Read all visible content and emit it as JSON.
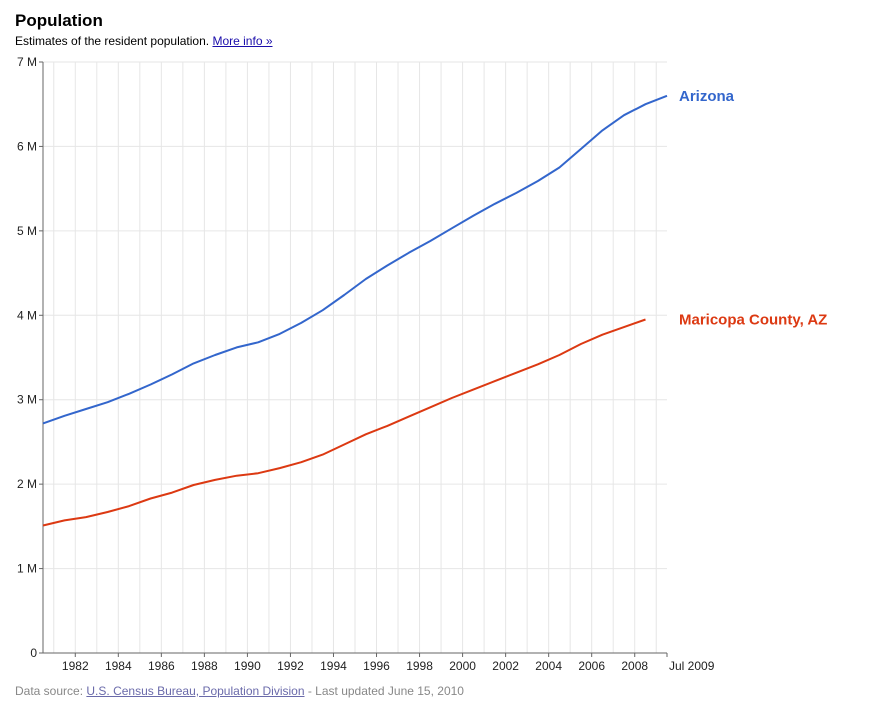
{
  "header": {
    "title": "Population",
    "subtitle": "Estimates of the resident population.",
    "more_info_label": "More info »"
  },
  "footer": {
    "source_prefix": "Data source:",
    "source_link": "U.S. Census Bureau, Population Division",
    "updated": " - Last updated June 15, 2010"
  },
  "colors": {
    "arizona": "#3366cc",
    "maricopa": "#dc3912",
    "grid": "#e6e6e6",
    "axis": "#666666"
  },
  "chart_data": {
    "type": "line",
    "title": "Population",
    "xlabel": "",
    "ylabel": "",
    "xlim": [
      1980.5,
      2009.5
    ],
    "ylim": [
      0,
      7000000
    ],
    "grid": true,
    "legend": "right-end labels",
    "y_ticks": [
      {
        "value": 0,
        "label": "0"
      },
      {
        "value": 1000000,
        "label": "1 M"
      },
      {
        "value": 2000000,
        "label": "2 M"
      },
      {
        "value": 3000000,
        "label": "3 M"
      },
      {
        "value": 4000000,
        "label": "4 M"
      },
      {
        "value": 5000000,
        "label": "5 M"
      },
      {
        "value": 6000000,
        "label": "6 M"
      },
      {
        "value": 7000000,
        "label": "7 M"
      }
    ],
    "x_ticks": [
      {
        "value": 1982,
        "label": "1982"
      },
      {
        "value": 1984,
        "label": "1984"
      },
      {
        "value": 1986,
        "label": "1986"
      },
      {
        "value": 1988,
        "label": "1988"
      },
      {
        "value": 1990,
        "label": "1990"
      },
      {
        "value": 1992,
        "label": "1992"
      },
      {
        "value": 1994,
        "label": "1994"
      },
      {
        "value": 1996,
        "label": "1996"
      },
      {
        "value": 1998,
        "label": "1998"
      },
      {
        "value": 2000,
        "label": "2000"
      },
      {
        "value": 2002,
        "label": "2002"
      },
      {
        "value": 2004,
        "label": "2004"
      },
      {
        "value": 2006,
        "label": "2006"
      },
      {
        "value": 2008,
        "label": "2008"
      },
      {
        "value": 2009.5,
        "label": "Jul 2009"
      }
    ],
    "series": [
      {
        "name": "Arizona",
        "color": "#3366cc",
        "x": [
          1980.5,
          1981.5,
          1982.5,
          1983.5,
          1984.5,
          1985.5,
          1986.5,
          1987.5,
          1988.5,
          1989.5,
          1990.5,
          1991.5,
          1992.5,
          1993.5,
          1994.5,
          1995.5,
          1996.5,
          1997.5,
          1998.5,
          1999.5,
          2000.5,
          2001.5,
          2002.5,
          2003.5,
          2004.5,
          2005.5,
          2006.5,
          2007.5,
          2008.5,
          2009.5
        ],
        "values": [
          2720000,
          2810000,
          2890000,
          2970000,
          3070000,
          3180000,
          3300000,
          3430000,
          3530000,
          3620000,
          3680000,
          3780000,
          3910000,
          4060000,
          4240000,
          4430000,
          4590000,
          4740000,
          4880000,
          5030000,
          5180000,
          5320000,
          5450000,
          5590000,
          5750000,
          5970000,
          6190000,
          6370000,
          6500000,
          6600000
        ]
      },
      {
        "name": "Maricopa County, AZ",
        "color": "#dc3912",
        "x": [
          1980.5,
          1981.5,
          1982.5,
          1983.5,
          1984.5,
          1985.5,
          1986.5,
          1987.5,
          1988.5,
          1989.5,
          1990.5,
          1991.5,
          1992.5,
          1993.5,
          1994.5,
          1995.5,
          1996.5,
          1997.5,
          1998.5,
          1999.5,
          2000.5,
          2001.5,
          2002.5,
          2003.5,
          2004.5,
          2005.5,
          2006.5,
          2007.5,
          2008.5
        ],
        "values": [
          1510000,
          1570000,
          1610000,
          1670000,
          1740000,
          1830000,
          1900000,
          1990000,
          2050000,
          2100000,
          2130000,
          2190000,
          2260000,
          2350000,
          2470000,
          2590000,
          2690000,
          2800000,
          2910000,
          3020000,
          3120000,
          3220000,
          3320000,
          3420000,
          3530000,
          3660000,
          3770000,
          3860000,
          3950000
        ]
      }
    ]
  }
}
